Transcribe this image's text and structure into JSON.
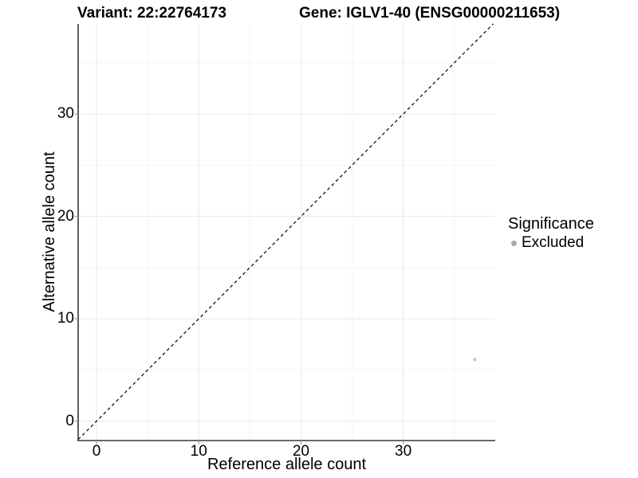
{
  "titles": {
    "variant": "Variant: 22:22764173",
    "gene": "Gene: IGLV1-40 (ENSG00000211653)"
  },
  "axes": {
    "x_title": "Reference allele count",
    "y_title": "Alternative allele count",
    "x_tick_labels": [
      "0",
      "10",
      "20",
      "30"
    ],
    "y_tick_labels": [
      "0",
      "10",
      "20",
      "30"
    ]
  },
  "legend": {
    "title": "Significance",
    "items": [
      {
        "label": "Excluded",
        "marker_color": "#a8a8a8"
      }
    ]
  },
  "chart_data": {
    "type": "scatter",
    "title_left": "Variant: 22:22764173",
    "title_right": "Gene: IGLV1-40 (ENSG00000211653)",
    "xlabel": "Reference allele count",
    "ylabel": "Alternative allele count",
    "xlim": [
      -1.8,
      39.0
    ],
    "ylim": [
      -1.9,
      38.8
    ],
    "x_major_ticks": [
      0,
      10,
      20,
      30
    ],
    "y_major_ticks": [
      0,
      10,
      20,
      30
    ],
    "x_minor_gridlines": [
      5,
      15,
      25,
      35
    ],
    "y_minor_gridlines": [
      5,
      15,
      25,
      35
    ],
    "grid": "major and minor gridlines, very light gray, white panel background",
    "legend_position": "right",
    "reference_line": {
      "equation": "y = x",
      "style": "dashed",
      "color": "#111111"
    },
    "series": [
      {
        "name": "Excluded",
        "marker_color": "#c7c7c7",
        "points": [
          {
            "x": 37,
            "y": 6
          }
        ]
      }
    ]
  },
  "style_colors": {
    "axis_line": "#383838",
    "tick_mark": "#9a9a9a",
    "major_grid": "#e9e9e9",
    "minor_grid": "#f5f5f5",
    "text": "#000000"
  }
}
